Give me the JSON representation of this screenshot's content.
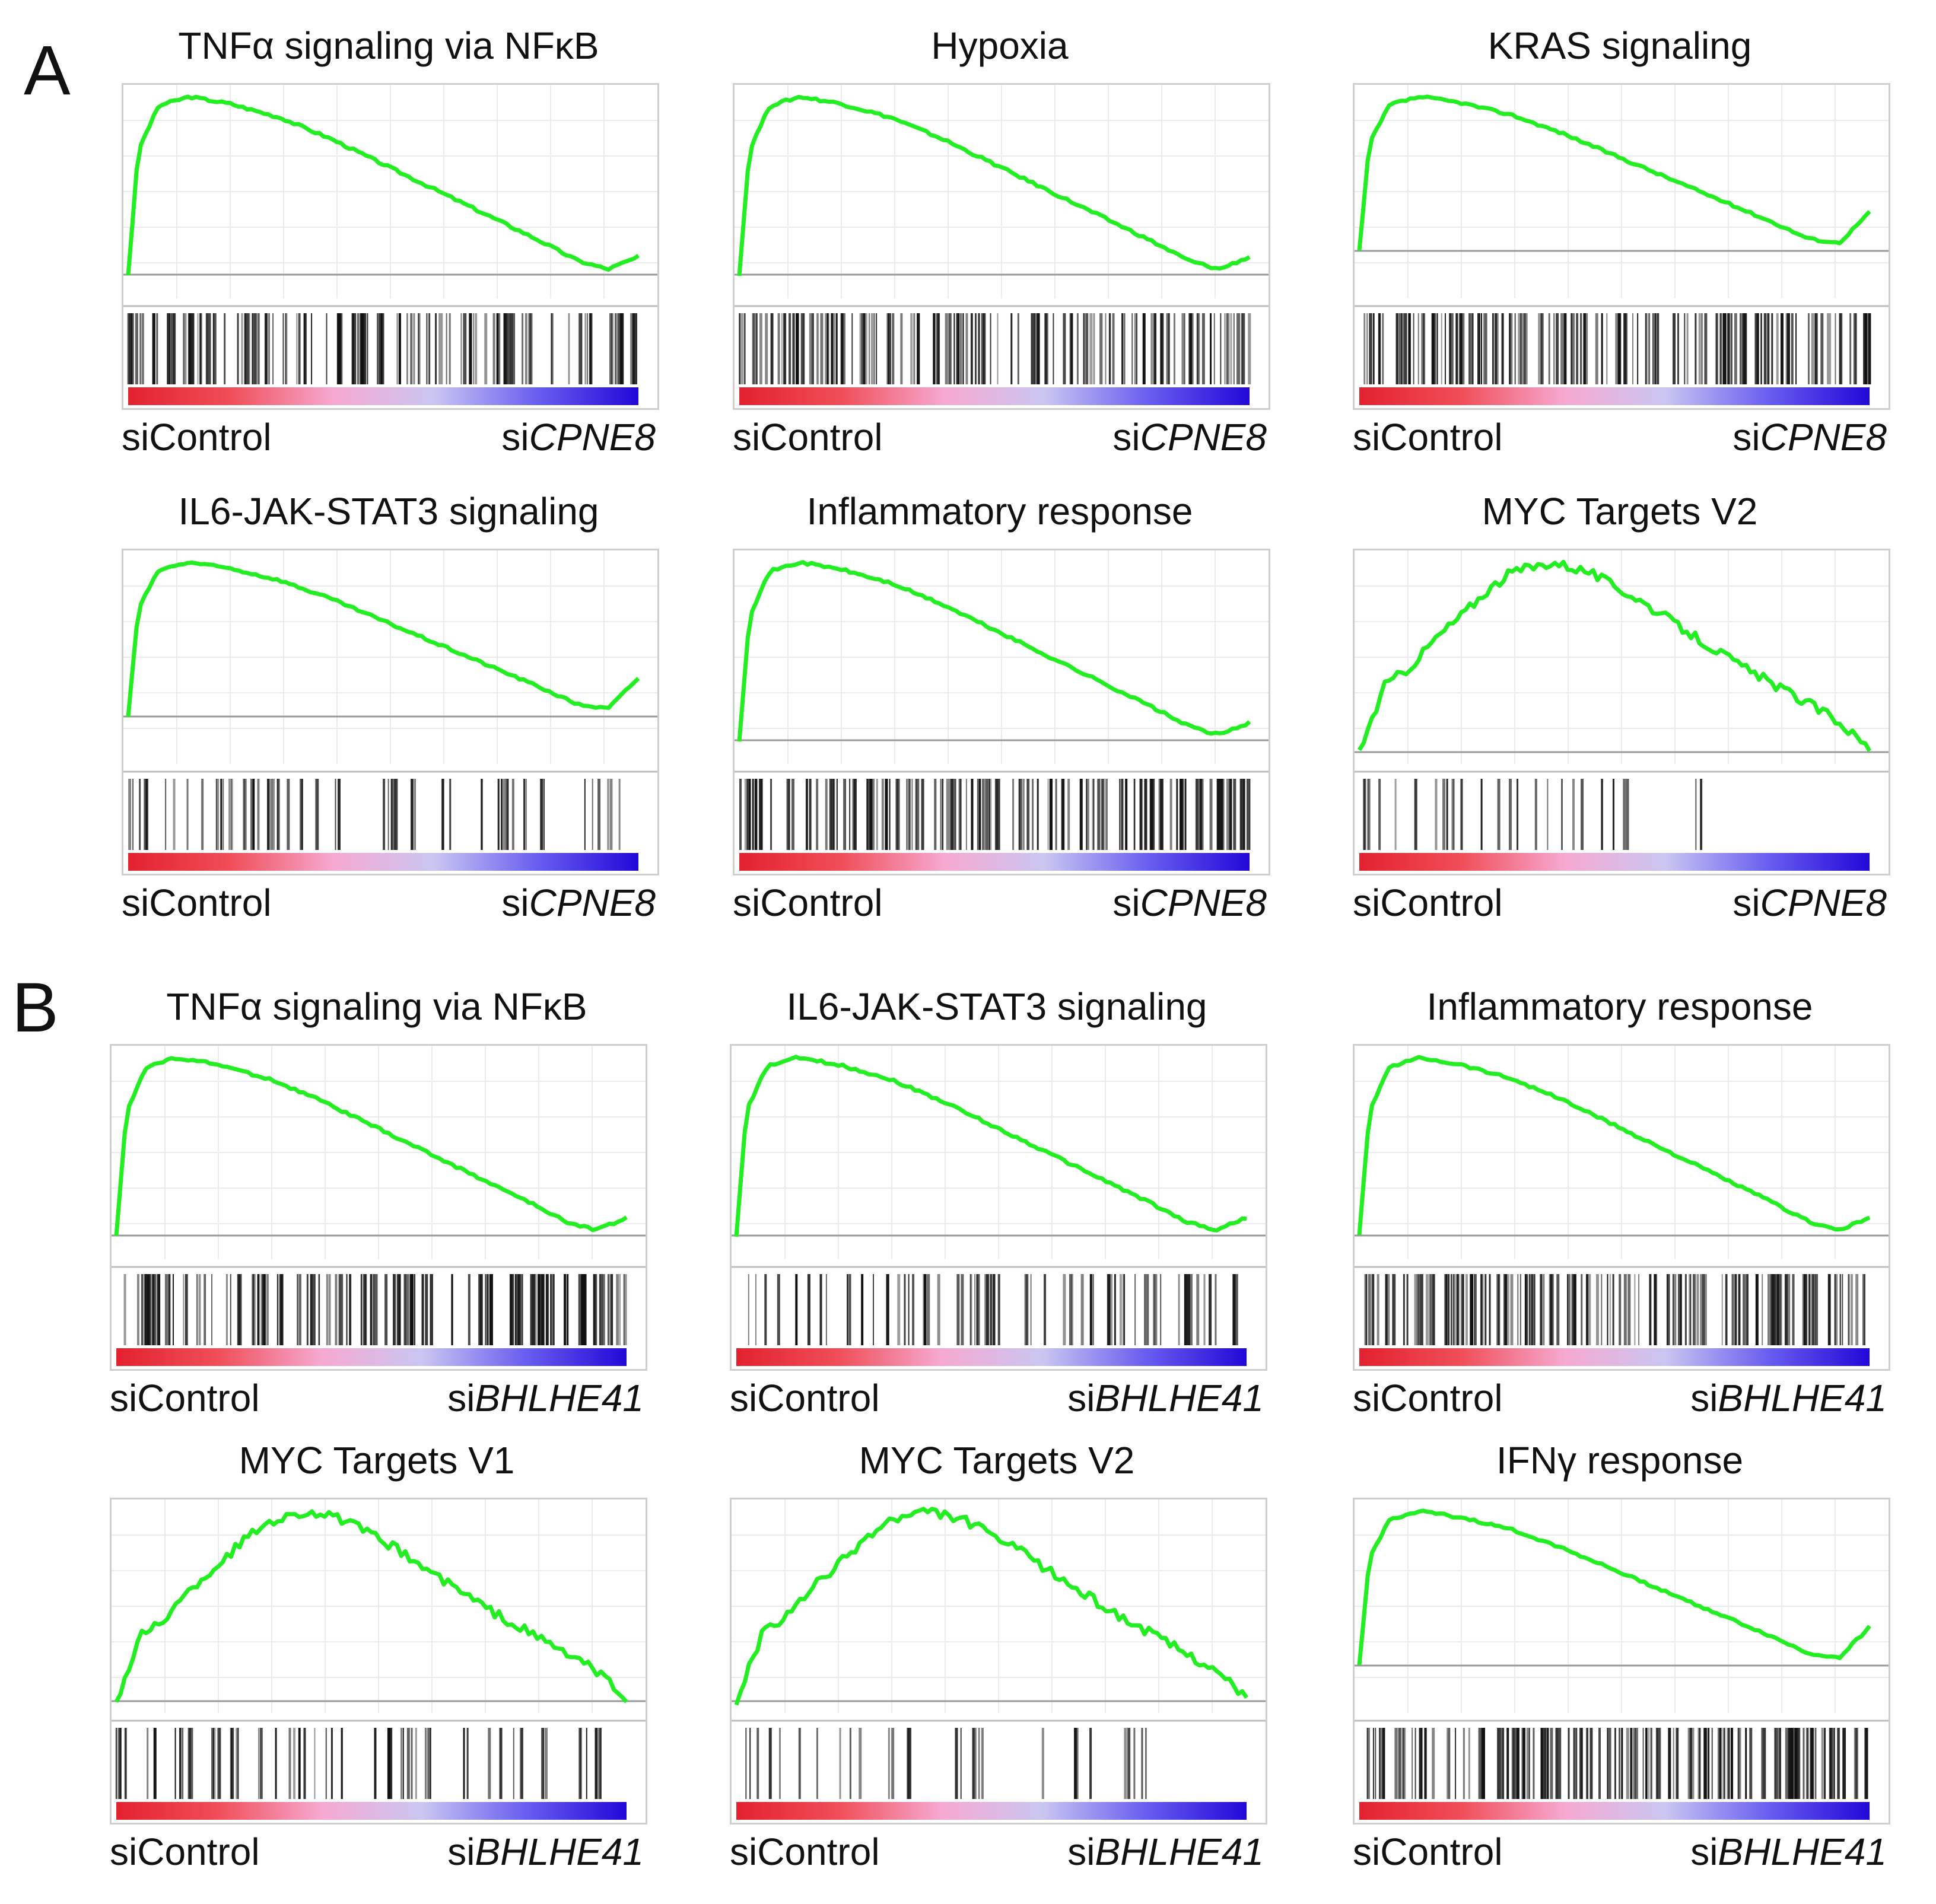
{
  "sections": [
    {
      "label": "A",
      "panels": [
        {
          "title": "TNFα signaling via NFκB",
          "left_label": "siControl",
          "right_prefix": "si",
          "right_gene": "CPNE8",
          "curve": "standard",
          "hits": "dense"
        },
        {
          "title": "Hypoxia",
          "left_label": "siControl",
          "right_prefix": "si",
          "right_gene": "CPNE8",
          "curve": "standard",
          "hits": "dense"
        },
        {
          "title": "KRAS signaling",
          "left_label": "siControl",
          "right_prefix": "si",
          "right_gene": "CPNE8",
          "curve": "standard_high_tail",
          "hits": "dense"
        },
        {
          "title": "IL6-JAK-STAT3 signaling",
          "left_label": "siControl",
          "right_prefix": "si",
          "right_gene": "CPNE8",
          "curve": "standard_high_tail",
          "hits": "sparse"
        },
        {
          "title": "Inflammatory response",
          "left_label": "siControl",
          "right_prefix": "si",
          "right_gene": "CPNE8",
          "curve": "standard",
          "hits": "dense"
        },
        {
          "title": "MYC Targets V2",
          "left_label": "siControl",
          "right_prefix": "si",
          "right_gene": "CPNE8",
          "curve": "myc",
          "hits": "very_sparse"
        }
      ]
    },
    {
      "label": "B",
      "panels": [
        {
          "title": "TNFα signaling via NFκB",
          "left_label": "siControl",
          "right_prefix": "si",
          "right_gene": "BHLHE41",
          "curve": "standard",
          "hits": "dense"
        },
        {
          "title": "IL6-JAK-STAT3 signaling",
          "left_label": "siControl",
          "right_prefix": "si",
          "right_gene": "BHLHE41",
          "curve": "standard",
          "hits": "sparse"
        },
        {
          "title": "Inflammatory response",
          "left_label": "siControl",
          "right_prefix": "si",
          "right_gene": "BHLHE41",
          "curve": "standard",
          "hits": "dense"
        },
        {
          "title": "MYC Targets V1",
          "left_label": "siControl",
          "right_prefix": "si",
          "right_gene": "BHLHE41",
          "curve": "myc",
          "hits": "sparse"
        },
        {
          "title": "MYC Targets V2",
          "left_label": "siControl",
          "right_prefix": "si",
          "right_gene": "BHLHE41",
          "curve": "myc",
          "hits": "very_sparse"
        },
        {
          "title": "IFNγ response",
          "left_label": "siControl",
          "right_prefix": "si",
          "right_gene": "BHLHE41",
          "curve": "standard_high_tail",
          "hits": "dense"
        }
      ]
    }
  ],
  "chart_data": {
    "type": "line",
    "description_source": "GSEA enrichment plots",
    "curve_templates": {
      "standard": {
        "x": [
          0,
          0.02,
          0.06,
          0.12,
          0.2,
          0.3,
          0.4,
          0.5,
          0.6,
          0.7,
          0.8,
          0.88,
          0.94,
          1.0
        ],
        "y": [
          0,
          0.7,
          0.95,
          1.0,
          0.96,
          0.88,
          0.76,
          0.62,
          0.48,
          0.34,
          0.2,
          0.08,
          0.03,
          0.1
        ]
      },
      "standard_high_tail": {
        "x": [
          0,
          0.02,
          0.06,
          0.12,
          0.2,
          0.3,
          0.4,
          0.5,
          0.6,
          0.7,
          0.8,
          0.88,
          0.94,
          1.0
        ],
        "y": [
          0,
          0.7,
          0.95,
          1.0,
          0.96,
          0.88,
          0.76,
          0.62,
          0.48,
          0.34,
          0.2,
          0.08,
          0.05,
          0.25
        ]
      },
      "myc": {
        "x": [
          0,
          0.05,
          0.1,
          0.15,
          0.2,
          0.25,
          0.3,
          0.38,
          0.45,
          0.55,
          0.65,
          0.75,
          0.85,
          0.93,
          1.0
        ],
        "y": [
          0,
          0.35,
          0.45,
          0.6,
          0.72,
          0.85,
          0.95,
          1.0,
          0.95,
          0.8,
          0.62,
          0.45,
          0.3,
          0.18,
          0.02
        ]
      }
    },
    "colors": {
      "curve": "#22ee22",
      "hit": "#111111",
      "zero_line": "#9a9a9a",
      "grid": "#ececec",
      "gradient": [
        "#e3212f",
        "#f04e58",
        "#f7a8d0",
        "#c9c6f2",
        "#6a5ef0",
        "#2208d8"
      ]
    }
  }
}
